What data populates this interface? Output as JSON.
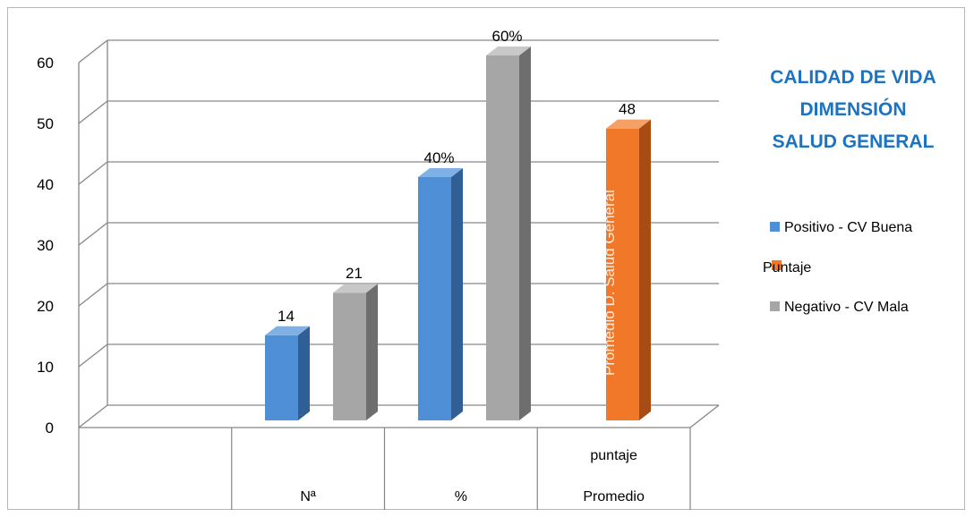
{
  "chart_data": {
    "type": "bar",
    "title": [
      "CALIDAD DE VIDA",
      "DIMENSIÓN",
      "SALUD GENERAL"
    ],
    "faded_title": "Promedio D. Salud General",
    "categories": [
      [
        "Nª"
      ],
      [
        "%"
      ],
      [
        "puntaje",
        "Promedio"
      ]
    ],
    "ylim": [
      0,
      60
    ],
    "yticks": [
      0,
      10,
      20,
      30,
      40,
      50,
      60
    ],
    "grid": true,
    "legend_position": "right",
    "series": [
      {
        "name": "Positivo - CV  Buena",
        "color": "#4f8fd6",
        "side": "#2f5f95",
        "top": "#7fb1e6",
        "values": [
          14,
          40,
          null
        ],
        "labels": [
          "14",
          "40%",
          ""
        ]
      },
      {
        "name": "Puntaje",
        "color": "#f07828",
        "side": "#a74c12",
        "top": "#f5a064",
        "values": [
          null,
          null,
          48
        ],
        "labels": [
          "",
          "",
          "48"
        ]
      },
      {
        "name": "Negativo - CV Mala",
        "color": "#a6a6a6",
        "side": "#6e6e6e",
        "top": "#c8c8c8",
        "values": [
          21,
          60,
          null
        ],
        "labels": [
          "21",
          "60%",
          ""
        ]
      }
    ]
  }
}
